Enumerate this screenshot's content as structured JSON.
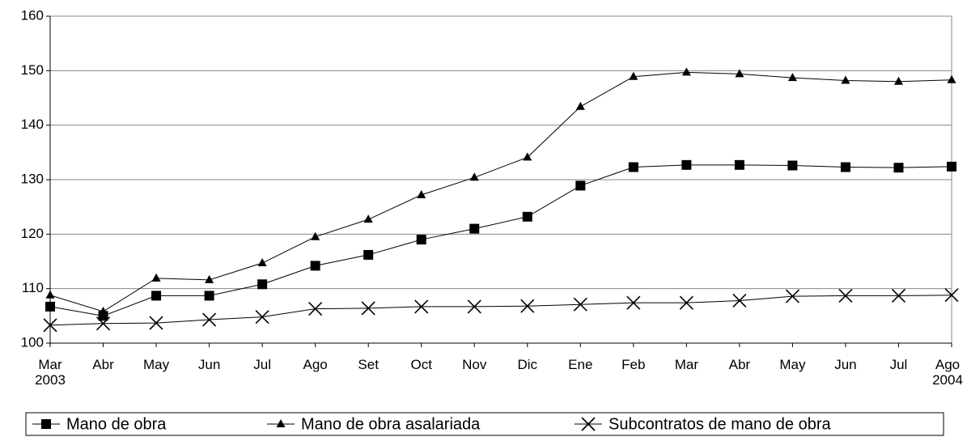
{
  "chart_data": {
    "type": "line",
    "categories": [
      "Mar 2003",
      "Abr",
      "May",
      "Jun",
      "Jul",
      "Ago",
      "Set",
      "Oct",
      "Nov",
      "Dic",
      "Ene",
      "Feb",
      "Mar",
      "Abr",
      "May",
      "Jun",
      "Jul",
      "Ago 2004"
    ],
    "series": [
      {
        "name": "Mano de obra",
        "color": "#000000",
        "marker": "square",
        "values": [
          106.7,
          105.0,
          108.7,
          108.7,
          110.8,
          114.2,
          116.2,
          119.0,
          121.0,
          123.2,
          128.9,
          132.3,
          132.7,
          132.7,
          132.6,
          132.3,
          132.2,
          132.4
        ]
      },
      {
        "name": "Mano de obra asalariada",
        "color": "#000000",
        "marker": "triangle",
        "values": [
          108.8,
          105.8,
          111.9,
          111.6,
          114.7,
          119.5,
          122.7,
          127.2,
          130.4,
          134.1,
          143.4,
          148.9,
          149.7,
          149.4,
          148.7,
          148.2,
          148.0,
          148.3
        ]
      },
      {
        "name": "Subcontratos de mano de obra",
        "color": "#000000",
        "marker": "x",
        "values": [
          103.3,
          103.6,
          103.7,
          104.3,
          104.8,
          106.3,
          106.4,
          106.7,
          106.7,
          106.8,
          107.1,
          107.4,
          107.4,
          107.8,
          108.6,
          108.7,
          108.7,
          108.8
        ]
      }
    ],
    "ylim": [
      100,
      160
    ],
    "yticks": [
      100,
      110,
      120,
      130,
      140,
      150,
      160
    ],
    "grid": true,
    "legend": "bottom"
  }
}
